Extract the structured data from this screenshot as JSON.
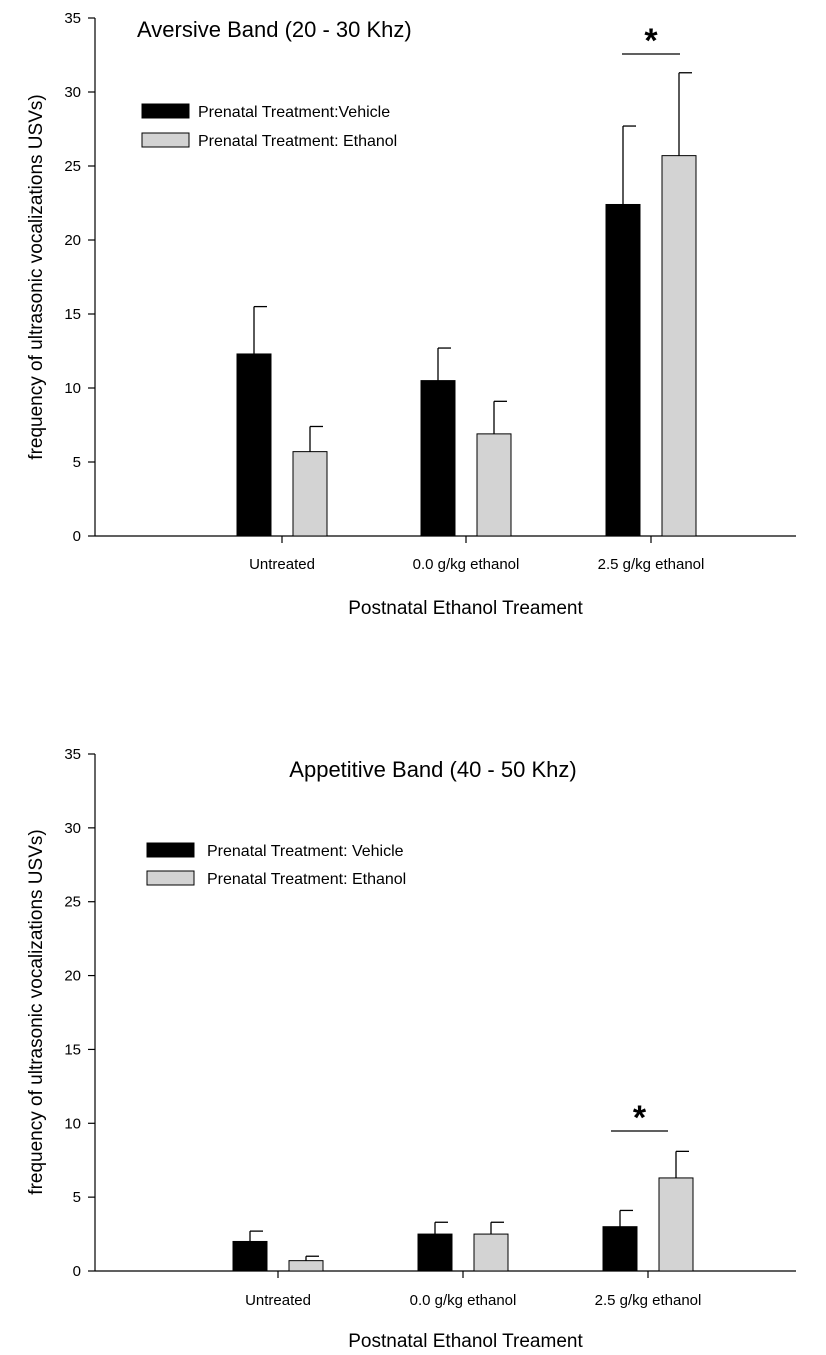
{
  "chart_data": [
    {
      "type": "bar",
      "title": "Aversive Band (20 - 30 Khz)",
      "xlabel": "Postnatal Ethanol Treament",
      "ylabel": "frequency of ultrasonic vocalizations USVs)",
      "ylim": [
        0,
        35
      ],
      "yticks": [
        0,
        5,
        10,
        15,
        20,
        25,
        30,
        35
      ],
      "categories": [
        "Untreated",
        "0.0 g/kg ethanol",
        "2.5 g/kg ethanol"
      ],
      "series": [
        {
          "name": "Prenatal Treatment:Vehicle",
          "color": "#000000",
          "values": [
            12.3,
            10.5,
            22.4
          ],
          "errors": [
            3.2,
            2.2,
            5.3
          ]
        },
        {
          "name": "Prenatal Treatment: Ethanol",
          "color": "#d3d3d3",
          "values": [
            5.7,
            6.9,
            25.7
          ],
          "errors": [
            1.7,
            2.2,
            5.6
          ]
        }
      ],
      "legend_position": "top-left",
      "grid": false,
      "annotations": [
        {
          "text": "*",
          "category": "2.5 g/kg ethanol"
        }
      ]
    },
    {
      "type": "bar",
      "title": "Appetitive Band (40 - 50 Khz)",
      "xlabel": "Postnatal Ethanol Treament",
      "ylabel": "frequency of ultrasonic vocalizations USVs)",
      "ylim": [
        0,
        35
      ],
      "yticks": [
        0,
        5,
        10,
        15,
        20,
        25,
        30,
        35
      ],
      "categories": [
        "Untreated",
        "0.0 g/kg ethanol",
        "2.5 g/kg ethanol"
      ],
      "series": [
        {
          "name": "Prenatal Treatment: Vehicle",
          "color": "#000000",
          "values": [
            2.0,
            2.5,
            3.0
          ],
          "errors": [
            0.7,
            0.8,
            1.1
          ]
        },
        {
          "name": "Prenatal Treatment: Ethanol",
          "color": "#d3d3d3",
          "values": [
            0.7,
            2.5,
            6.3
          ],
          "errors": [
            0.3,
            0.8,
            1.8
          ]
        }
      ],
      "legend_position": "top-left",
      "grid": false,
      "annotations": [
        {
          "text": "*",
          "category": "2.5 g/kg ethanol"
        }
      ]
    }
  ]
}
